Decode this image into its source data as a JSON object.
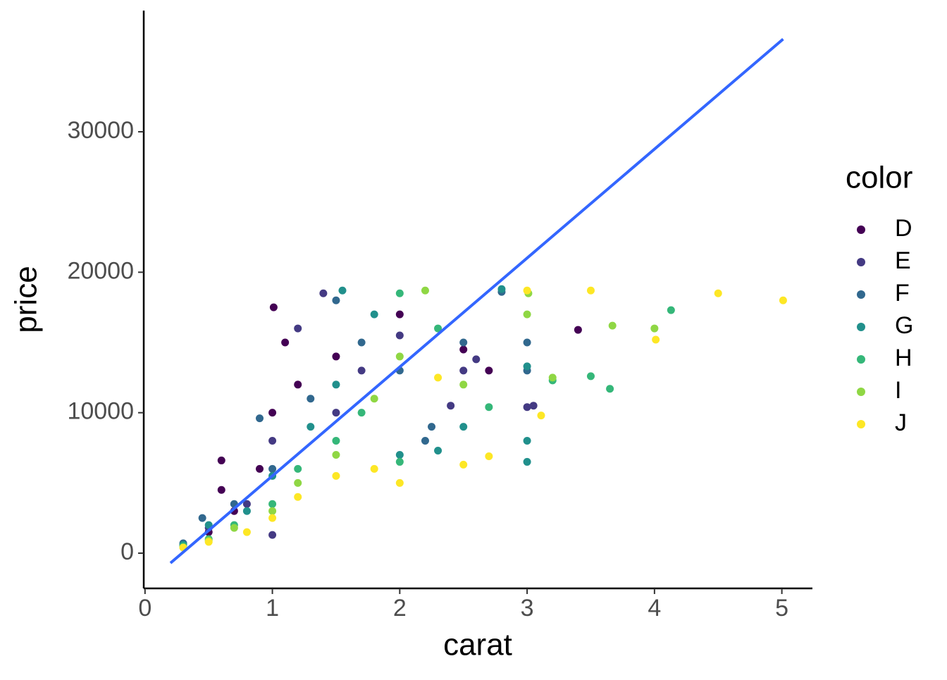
{
  "chart_data": {
    "type": "scatter",
    "x_label": "carat",
    "y_label": "price",
    "legend_title": "color",
    "xlim": [
      -0.01,
      5.24
    ],
    "ylim": [
      -2509,
      38630
    ],
    "xticks": [
      0,
      1,
      2,
      3,
      4,
      5
    ],
    "yticks": [
      0,
      10000,
      20000,
      30000
    ],
    "grid": false,
    "legend": "right",
    "fit": {
      "color": "#3366ff",
      "x": [
        0.2,
        5.01
      ],
      "y": [
        -705,
        36600
      ]
    },
    "series": [
      {
        "name": "D",
        "color": "#440154",
        "x": [
          0.3,
          0.5,
          0.6,
          0.7,
          0.9,
          1.0,
          1.01,
          1.1,
          1.2,
          1.5,
          2.0,
          2.5,
          2.7,
          3.4,
          0.6
        ],
        "values": [
          500,
          1500,
          4500,
          3000,
          6000,
          10000,
          17500,
          15000,
          12000,
          14000,
          17000,
          14500,
          13000,
          15900,
          6600
        ]
      },
      {
        "name": "E",
        "color": "#443a83",
        "x": [
          0.3,
          0.5,
          0.8,
          1.0,
          1.0,
          1.2,
          1.4,
          1.5,
          1.7,
          2.0,
          2.4,
          2.5,
          3.0,
          3.05,
          2.6
        ],
        "values": [
          600,
          1800,
          3500,
          1300,
          8000,
          16000,
          18500,
          10000,
          13000,
          15500,
          10500,
          13000,
          10400,
          10500,
          13800
        ]
      },
      {
        "name": "F",
        "color": "#31688e",
        "x": [
          0.3,
          0.45,
          0.7,
          0.9,
          1.0,
          1.3,
          1.5,
          1.7,
          2.0,
          2.2,
          2.5,
          2.8,
          3.0,
          3.0,
          2.25
        ],
        "values": [
          700,
          2500,
          3500,
          9600,
          6000,
          11000,
          18000,
          15000,
          13000,
          8000,
          15000,
          18600,
          13000,
          15000,
          9000
        ]
      },
      {
        "name": "G",
        "color": "#21908c",
        "x": [
          0.3,
          0.5,
          0.8,
          1.0,
          1.3,
          1.5,
          1.55,
          1.8,
          2.0,
          2.3,
          2.5,
          2.8,
          3.0,
          3.0,
          3.0
        ],
        "values": [
          600,
          2000,
          3000,
          5500,
          9000,
          12000,
          18700,
          17000,
          7000,
          7300,
          9000,
          18800,
          6500,
          13300,
          8000
        ]
      },
      {
        "name": "H",
        "color": "#35b779",
        "x": [
          0.3,
          0.5,
          0.7,
          1.0,
          1.2,
          1.5,
          1.7,
          2.0,
          2.0,
          2.3,
          2.7,
          3.2,
          3.5,
          3.65,
          4.13
        ],
        "values": [
          500,
          1000,
          2000,
          3500,
          6000,
          8000,
          10000,
          18500,
          6500,
          16000,
          10400,
          12300,
          12600,
          11700,
          17300
        ]
      },
      {
        "name": "I",
        "color": "#8fd744",
        "x": [
          0.3,
          0.5,
          0.7,
          1.0,
          1.2,
          1.5,
          1.8,
          2.0,
          2.2,
          2.5,
          3.0,
          3.2,
          3.67,
          4.0,
          3.01
        ],
        "values": [
          400,
          900,
          1800,
          3000,
          5000,
          7000,
          11000,
          14000,
          18700,
          12000,
          17000,
          12500,
          16200,
          16000,
          18500
        ]
      },
      {
        "name": "J",
        "color": "#fde725",
        "x": [
          0.3,
          0.5,
          0.8,
          1.0,
          1.2,
          1.5,
          1.8,
          2.0,
          2.3,
          2.5,
          2.7,
          3.0,
          3.5,
          4.01,
          4.5,
          5.01,
          3.11
        ],
        "values": [
          400,
          800,
          1500,
          2500,
          4000,
          5500,
          6000,
          5000,
          12500,
          6300,
          6900,
          18700,
          18700,
          15200,
          18500,
          18000,
          9800
        ]
      }
    ]
  }
}
